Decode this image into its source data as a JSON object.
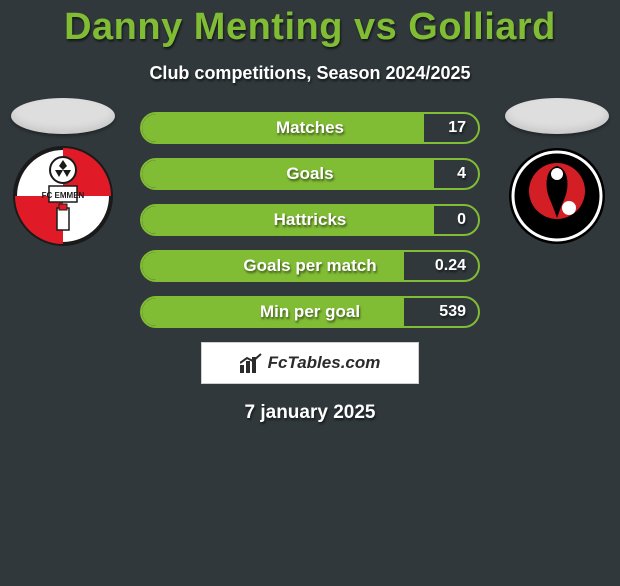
{
  "title": "Danny Menting vs Golliard",
  "subtitle": "Club competitions, Season 2024/2025",
  "date": "7 january 2025",
  "colors": {
    "background": "#30383b",
    "accent": "#80bc34",
    "text": "#ffffff",
    "avatar_head": "#dedede",
    "logo_bg": "#ffffff",
    "logo_text": "#2b2b2b"
  },
  "bar_style": {
    "border_width": 2,
    "border_radius": 16,
    "height": 32,
    "gap": 14,
    "label_fontsize": 17,
    "value_fontsize": 16
  },
  "left_team": {
    "name": "FC Emmen",
    "badge_main": "#e11a27",
    "badge_white": "#ffffff",
    "badge_stroke": "#1a1a1a"
  },
  "right_team": {
    "name": "Helmond Sport",
    "badge_bg": "#000000",
    "badge_ring": "#ffffff",
    "badge_inner": "#d41e26"
  },
  "stats": [
    {
      "label": "Matches",
      "left_pct": 84,
      "right_value": "17"
    },
    {
      "label": "Goals",
      "left_pct": 87,
      "right_value": "4"
    },
    {
      "label": "Hattricks",
      "left_pct": 87,
      "right_value": "0"
    },
    {
      "label": "Goals per match",
      "left_pct": 78,
      "right_value": "0.24"
    },
    {
      "label": "Min per goal",
      "left_pct": 78,
      "right_value": "539"
    }
  ],
  "logo": {
    "text": "FcTables.com"
  }
}
